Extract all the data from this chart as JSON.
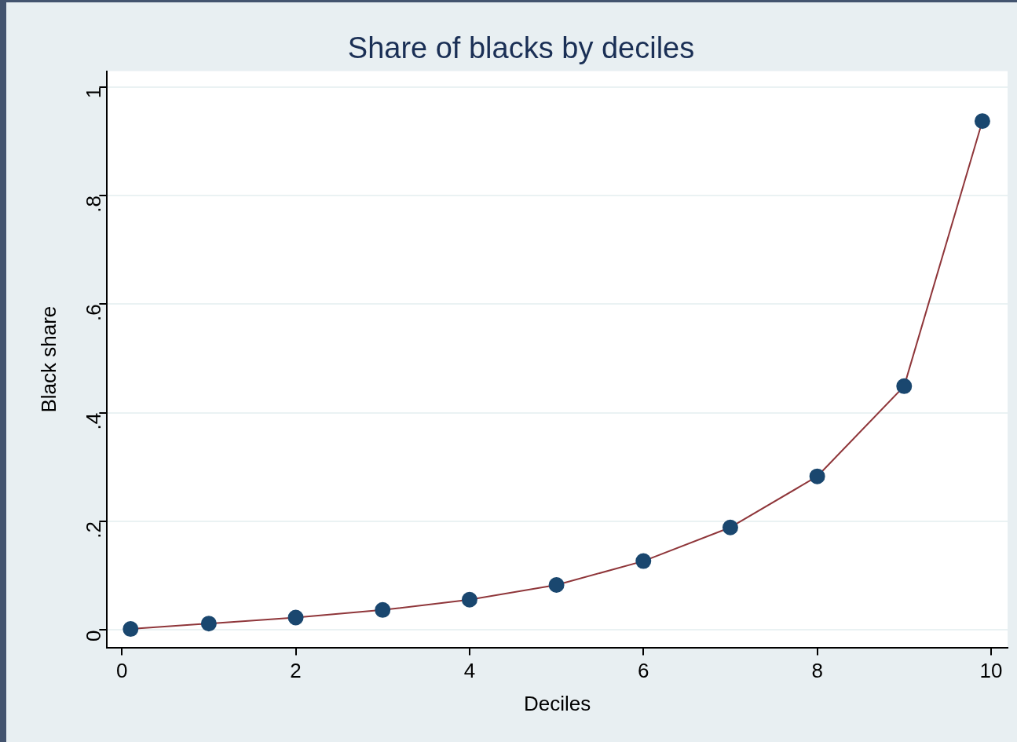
{
  "chart_data": {
    "type": "line",
    "title": "Share of blacks by deciles",
    "xlabel": "Deciles",
    "ylabel": "Black share",
    "x": [
      0.1,
      1,
      2,
      3,
      4,
      5,
      6,
      7,
      8,
      9,
      9.9
    ],
    "series": [
      {
        "color": "#8f363a",
        "colors": [
          "#1a476f",
          "#1a476f",
          "#1a476f",
          "#1a476f",
          "#1a476f",
          "#1a476f",
          "#1a476f",
          "#1a476f",
          "#1a476f",
          "#1a476f",
          "#1a476f"
        ],
        "values": [
          0.002,
          0.012,
          0.023,
          0.037,
          0.056,
          0.083,
          0.127,
          0.189,
          0.283,
          0.449,
          0.937
        ]
      }
    ],
    "marker": "circle",
    "line_style": "solid",
    "xlim": [
      -0.17,
      10.19
    ],
    "xticks": [
      0,
      2,
      4,
      6,
      8,
      10
    ],
    "ylim": [
      -0.032,
      1.029
    ],
    "yticks": [
      0,
      {
        "value": 0.2,
        "label": ".2"
      },
      {
        "value": 0.4,
        "label": ".4"
      },
      {
        "value": 0.6,
        "label": ".6"
      },
      {
        "value": 0.8,
        "label": ".8"
      },
      1
    ],
    "grid": "y",
    "legend": false
  }
}
